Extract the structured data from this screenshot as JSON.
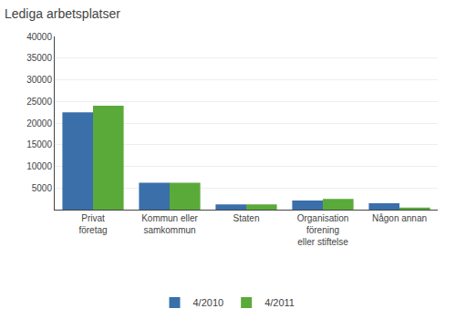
{
  "chart_data": {
    "type": "bar",
    "title": "Lediga arbetsplatser",
    "categories": [
      "Privat\nföretag",
      "Kommun eller\nsamkommun",
      "Staten",
      "Organisation\nförening\neller stiftelse",
      "Någon annan"
    ],
    "series": [
      {
        "name": "4/2010",
        "color": "#3a6faa",
        "values": [
          22500,
          6200,
          1200,
          2100,
          1500
        ]
      },
      {
        "name": "4/2011",
        "color": "#5aaa3a",
        "values": [
          24000,
          6200,
          1200,
          2500,
          500
        ]
      }
    ],
    "ylim": [
      0,
      40000
    ],
    "yticks": [
      5000,
      10000,
      15000,
      20000,
      25000,
      30000,
      35000,
      40000
    ],
    "grid": true,
    "legend": "bottom"
  }
}
